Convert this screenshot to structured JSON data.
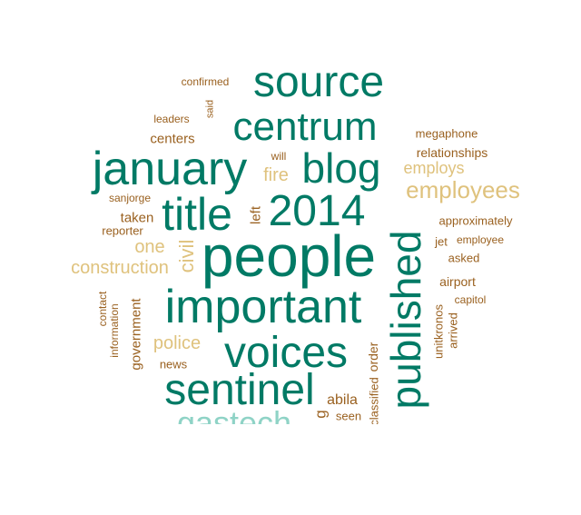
{
  "colors": {
    "teal": "#007a65",
    "light_teal": "#8fd3c6",
    "sand": "#dfc27d",
    "brown": "#9a6120"
  },
  "words": [
    {
      "text": "people",
      "color": "teal",
      "orientation": "horizontal"
    },
    {
      "text": "important",
      "color": "teal",
      "orientation": "horizontal"
    },
    {
      "text": "published",
      "color": "teal",
      "orientation": "vertical"
    },
    {
      "text": "2014",
      "color": "teal",
      "orientation": "horizontal"
    },
    {
      "text": "source",
      "color": "teal",
      "orientation": "horizontal"
    },
    {
      "text": "centrum",
      "color": "teal",
      "orientation": "horizontal"
    },
    {
      "text": "january",
      "color": "teal",
      "orientation": "horizontal"
    },
    {
      "text": "voices",
      "color": "teal",
      "orientation": "horizontal"
    },
    {
      "text": "sentinel",
      "color": "teal",
      "orientation": "horizontal"
    },
    {
      "text": "blog",
      "color": "teal",
      "orientation": "horizontal"
    },
    {
      "text": "title",
      "color": "teal",
      "orientation": "horizontal"
    },
    {
      "text": "gastech",
      "color": "light_teal",
      "orientation": "horizontal"
    },
    {
      "text": "employees",
      "color": "sand",
      "orientation": "horizontal"
    },
    {
      "text": "employs",
      "color": "sand",
      "orientation": "horizontal"
    },
    {
      "text": "fire",
      "color": "sand",
      "orientation": "horizontal"
    },
    {
      "text": "one",
      "color": "sand",
      "orientation": "horizontal"
    },
    {
      "text": "civil",
      "color": "sand",
      "orientation": "vertical"
    },
    {
      "text": "construction",
      "color": "sand",
      "orientation": "horizontal"
    },
    {
      "text": "police",
      "color": "sand",
      "orientation": "horizontal"
    },
    {
      "text": "confirmed",
      "color": "brown",
      "orientation": "horizontal"
    },
    {
      "text": "said",
      "color": "brown",
      "orientation": "vertical"
    },
    {
      "text": "leaders",
      "color": "brown",
      "orientation": "horizontal"
    },
    {
      "text": "centers",
      "color": "brown",
      "orientation": "horizontal"
    },
    {
      "text": "will",
      "color": "brown",
      "orientation": "horizontal"
    },
    {
      "text": "megaphone",
      "color": "brown",
      "orientation": "horizontal"
    },
    {
      "text": "relationships",
      "color": "brown",
      "orientation": "horizontal"
    },
    {
      "text": "sanjorge",
      "color": "brown",
      "orientation": "horizontal"
    },
    {
      "text": "taken",
      "color": "brown",
      "orientation": "horizontal"
    },
    {
      "text": "reporter",
      "color": "brown",
      "orientation": "horizontal"
    },
    {
      "text": "left",
      "color": "brown",
      "orientation": "vertical"
    },
    {
      "text": "approximately",
      "color": "brown",
      "orientation": "horizontal"
    },
    {
      "text": "jet",
      "color": "brown",
      "orientation": "horizontal"
    },
    {
      "text": "employee",
      "color": "brown",
      "orientation": "horizontal"
    },
    {
      "text": "asked",
      "color": "brown",
      "orientation": "horizontal"
    },
    {
      "text": "airport",
      "color": "brown",
      "orientation": "horizontal"
    },
    {
      "text": "capitol",
      "color": "brown",
      "orientation": "horizontal"
    },
    {
      "text": "contact",
      "color": "brown",
      "orientation": "vertical"
    },
    {
      "text": "information",
      "color": "brown",
      "orientation": "vertical"
    },
    {
      "text": "government",
      "color": "brown",
      "orientation": "vertical"
    },
    {
      "text": "news",
      "color": "brown",
      "orientation": "horizontal"
    },
    {
      "text": "order",
      "color": "brown",
      "orientation": "vertical"
    },
    {
      "text": "classified",
      "color": "brown",
      "orientation": "vertical"
    },
    {
      "text": "unitkronos",
      "color": "brown",
      "orientation": "vertical"
    },
    {
      "text": "arrived",
      "color": "brown",
      "orientation": "vertical"
    },
    {
      "text": "abila",
      "color": "brown",
      "orientation": "horizontal"
    },
    {
      "text": "seen",
      "color": "brown",
      "orientation": "horizontal"
    },
    {
      "text": "g",
      "color": "brown",
      "orientation": "vertical"
    }
  ]
}
